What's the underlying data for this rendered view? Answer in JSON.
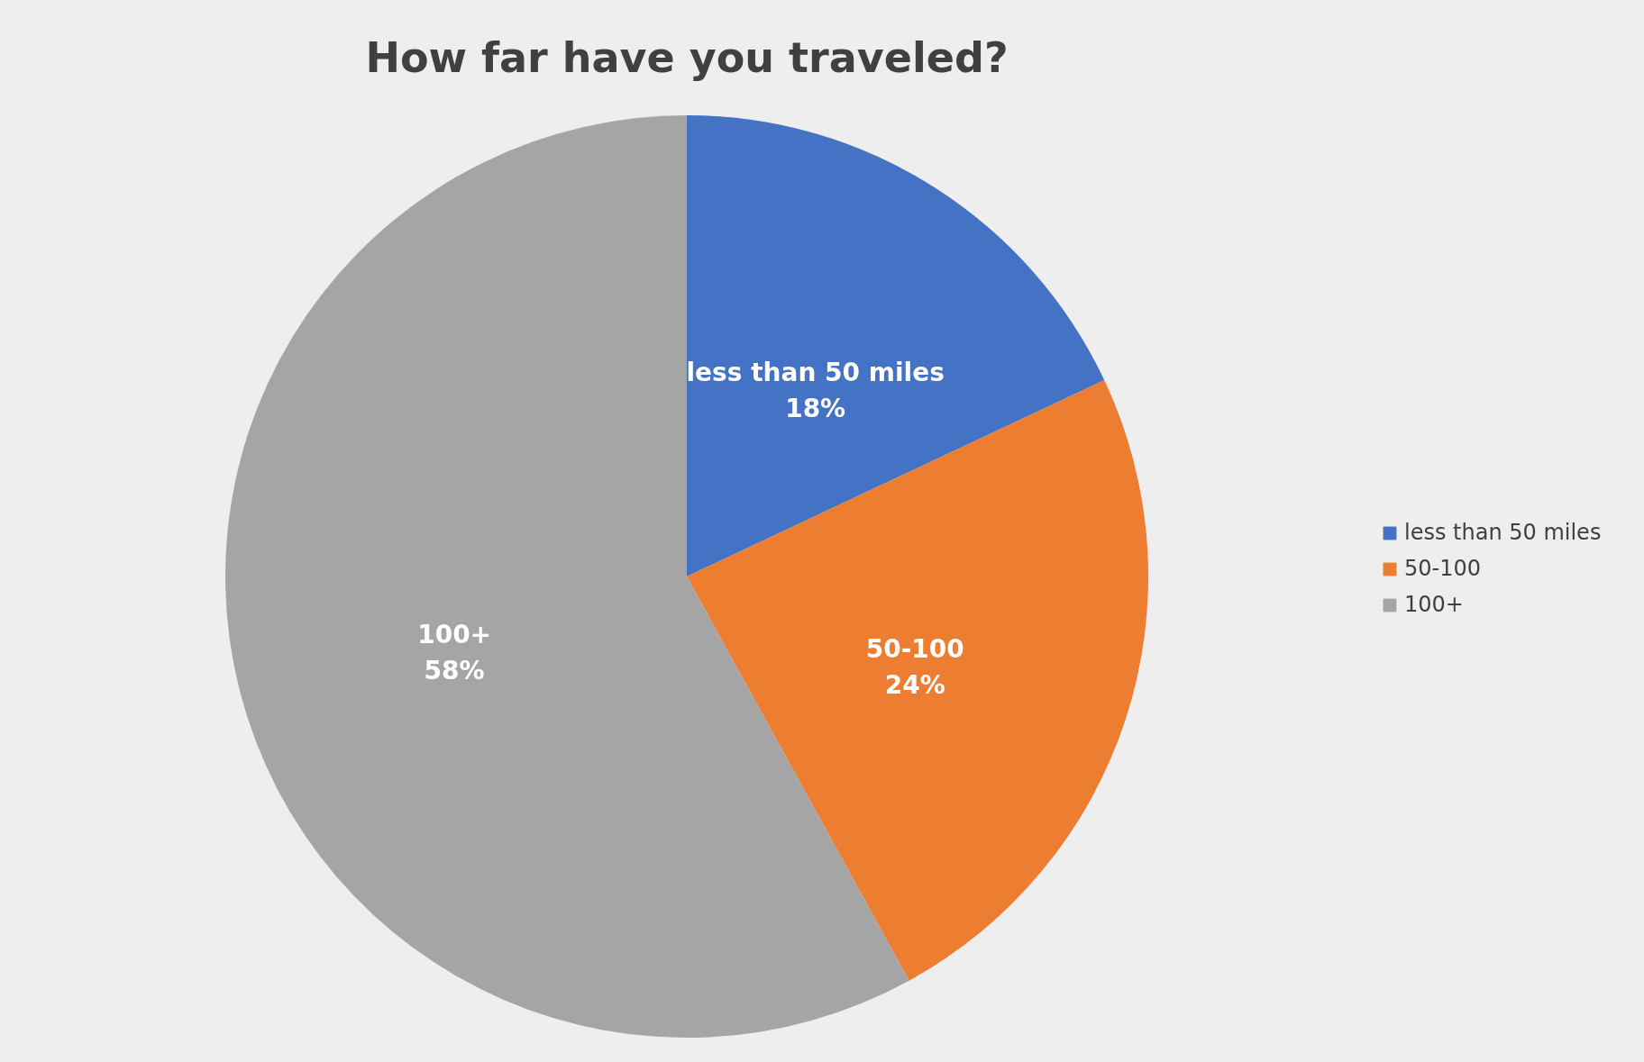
{
  "chart_data": {
    "type": "pie",
    "title": "How far have you traveled?",
    "categories": [
      "less than 50 miles",
      "50-100",
      "100+"
    ],
    "values": [
      18,
      24,
      58
    ],
    "value_labels": [
      "18%",
      "24%",
      "58%"
    ],
    "colors": [
      "#4472c4",
      "#ed7d31",
      "#a5a5a5"
    ],
    "legend": "right"
  }
}
